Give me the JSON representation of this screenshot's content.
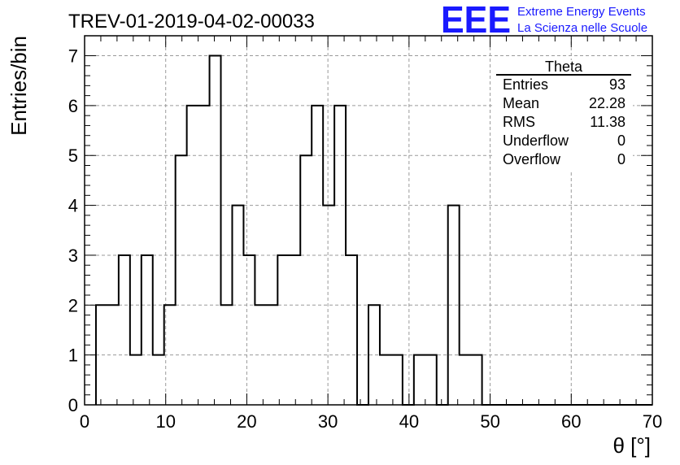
{
  "chart_data": {
    "type": "bar",
    "title": "TREV-01-2019-04-02-00033",
    "xlabel": "θ [°]",
    "ylabel": "Entries/bin",
    "xlim": [
      0,
      70
    ],
    "ylim": [
      0,
      7.4
    ],
    "x_ticks": [
      "0",
      "10",
      "20",
      "30",
      "40",
      "50",
      "60",
      "70"
    ],
    "y_ticks": [
      "0",
      "1",
      "2",
      "3",
      "4",
      "5",
      "6",
      "7"
    ],
    "grid": true,
    "bin_width": 1.4,
    "bin_start": 1.4,
    "values": [
      2,
      2,
      3,
      1,
      3,
      1,
      2,
      5,
      6,
      6,
      7,
      2,
      4,
      3,
      2,
      2,
      3,
      3,
      5,
      6,
      4,
      6,
      3,
      0,
      2,
      1,
      1,
      0,
      1,
      1,
      0,
      4,
      1,
      1,
      0,
      0,
      0,
      0,
      0,
      0,
      0,
      0,
      0,
      0,
      0,
      0,
      0,
      0,
      0
    ]
  },
  "stats_box": {
    "title": "Theta",
    "rows": [
      {
        "label": "Entries",
        "value": "93"
      },
      {
        "label": "Mean",
        "value": "22.28"
      },
      {
        "label": "RMS",
        "value": "11.38"
      },
      {
        "label": "Underflow",
        "value": "0"
      },
      {
        "label": "Overflow",
        "value": "0"
      }
    ]
  },
  "logo": {
    "mark": "EEE",
    "line1": "Extreme Energy Events",
    "line2": "La Scienza nelle Scuole",
    "color": "#1a1aff"
  }
}
